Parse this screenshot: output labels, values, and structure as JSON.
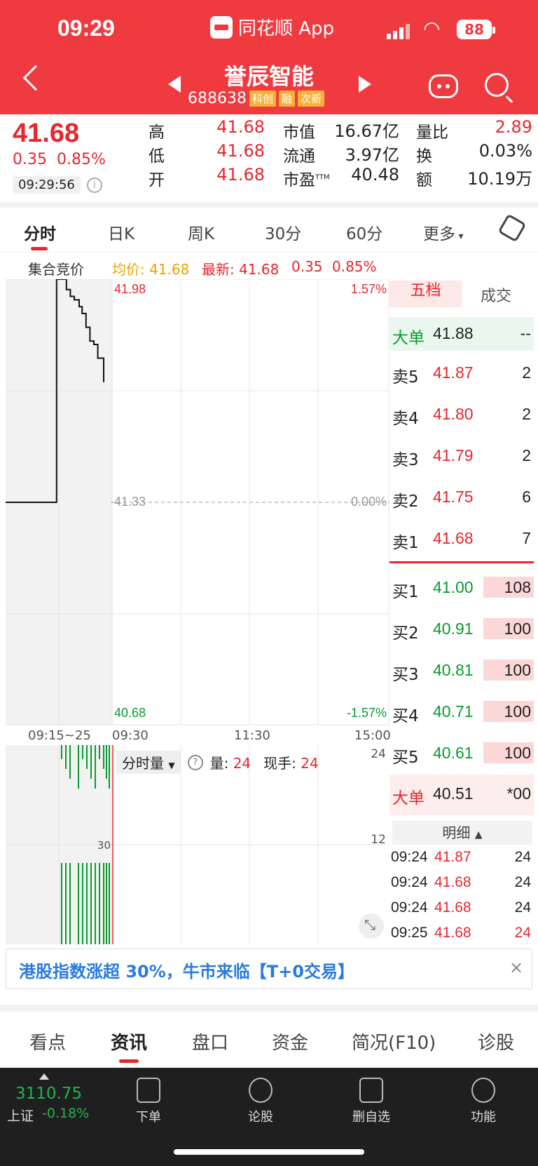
{
  "status_bar": {
    "time": "09:29",
    "app_name": "同花顺 App",
    "battery": "88"
  },
  "header": {
    "stock_name": "誉辰智能",
    "stock_code": "688638",
    "tags": [
      "科创",
      "融",
      "次新"
    ]
  },
  "quote": {
    "price": "41.68",
    "change": "0.35",
    "change_pct": "0.85%",
    "time": "09:29:56",
    "cols": [
      {
        "label": "高",
        "value": "41.68"
      },
      {
        "label": "低",
        "value": "41.68"
      },
      {
        "label": "开",
        "value": "41.68"
      }
    ],
    "cols2": [
      {
        "label": "市值",
        "value": "16.67亿"
      },
      {
        "label": "流通",
        "value": "3.97亿"
      },
      {
        "label": "市盈",
        "sup": "TTM",
        "value": "40.48"
      }
    ],
    "cols3": [
      {
        "label": "量比",
        "value": "2.89"
      },
      {
        "label": "换",
        "value": "0.03%"
      },
      {
        "label": "额",
        "value": "10.19万"
      }
    ]
  },
  "period_tabs": [
    "分时",
    "日K",
    "周K",
    "30分",
    "60分",
    "更多"
  ],
  "chart_header": {
    "auction": "集合竞价",
    "avg_label": "均价: 41.68",
    "latest_label": "最新: 41.68",
    "latest_change": "0.35",
    "latest_pct": "0.85%"
  },
  "chart": {
    "y_top": "41.98",
    "y_mid": "41.33",
    "y_bot": "40.68",
    "pct_top": "1.57%",
    "pct_mid": "0.00%",
    "pct_bot": "-1.57%",
    "x_labels": [
      "09:15~25",
      "09:30",
      "11:30",
      "15:00"
    ]
  },
  "chart_data": {
    "type": "line",
    "title": "",
    "y_range": [
      40.68,
      41.98
    ],
    "reference": 41.33,
    "series": [
      {
        "x": [
          0,
          0.5,
          0.52,
          0.6,
          0.62,
          0.66,
          0.7,
          0.75,
          0.78,
          0.82,
          0.86,
          0.9,
          0.94,
          1.0
        ],
        "y": [
          41.33,
          41.33,
          41.98,
          41.98,
          41.95,
          41.93,
          41.92,
          41.9,
          41.88,
          41.84,
          41.8,
          41.79,
          41.75,
          41.68
        ]
      }
    ]
  },
  "volume": {
    "select": "分时量",
    "qty_label": "量:",
    "qty_value": "24",
    "hand_label": "现手:",
    "hand_value": "24",
    "scale_top": "24",
    "scale_mid": "12",
    "pre_mid": "30"
  },
  "orderbook": {
    "tabs": [
      "五档",
      "成交"
    ],
    "big_sell": {
      "label": "大单",
      "price": "41.88",
      "vol": "--"
    },
    "asks": [
      {
        "label": "卖5",
        "price": "41.87",
        "vol": "2"
      },
      {
        "label": "卖4",
        "price": "41.80",
        "vol": "2"
      },
      {
        "label": "卖3",
        "price": "41.79",
        "vol": "2"
      },
      {
        "label": "卖2",
        "price": "41.75",
        "vol": "6"
      },
      {
        "label": "卖1",
        "price": "41.68",
        "vol": "7"
      }
    ],
    "bids": [
      {
        "label": "买1",
        "price": "41.00",
        "vol": "108"
      },
      {
        "label": "买2",
        "price": "40.91",
        "vol": "100"
      },
      {
        "label": "买3",
        "price": "40.81",
        "vol": "100"
      },
      {
        "label": "买4",
        "price": "40.71",
        "vol": "100"
      },
      {
        "label": "买5",
        "price": "40.61",
        "vol": "100"
      }
    ],
    "big_buy": {
      "label": "大单",
      "price": "40.51",
      "vol": "*00"
    },
    "detail_label": "明细",
    "trades": [
      {
        "time": "09:24",
        "price": "41.87",
        "vol": "24"
      },
      {
        "time": "09:24",
        "price": "41.68",
        "vol": "24"
      },
      {
        "time": "09:24",
        "price": "41.68",
        "vol": "24"
      },
      {
        "time": "09:25",
        "price": "41.68",
        "vol": "24"
      }
    ]
  },
  "ad": {
    "text": "港股指数涨超 30%，牛市来临【T+0交易】",
    "close": "×"
  },
  "section_tabs": [
    "看点",
    "资讯",
    "盘口",
    "资金",
    "简况(F10)",
    "诊股"
  ],
  "bottom": {
    "index_value": "3110.75",
    "index_name": "上证",
    "index_change": "-0.18%",
    "nav": [
      "下单",
      "论股",
      "删自选",
      "功能"
    ]
  },
  "colors": {
    "brand": "#ef3a40",
    "up": "#e8262d",
    "down": "#0a9b30"
  }
}
